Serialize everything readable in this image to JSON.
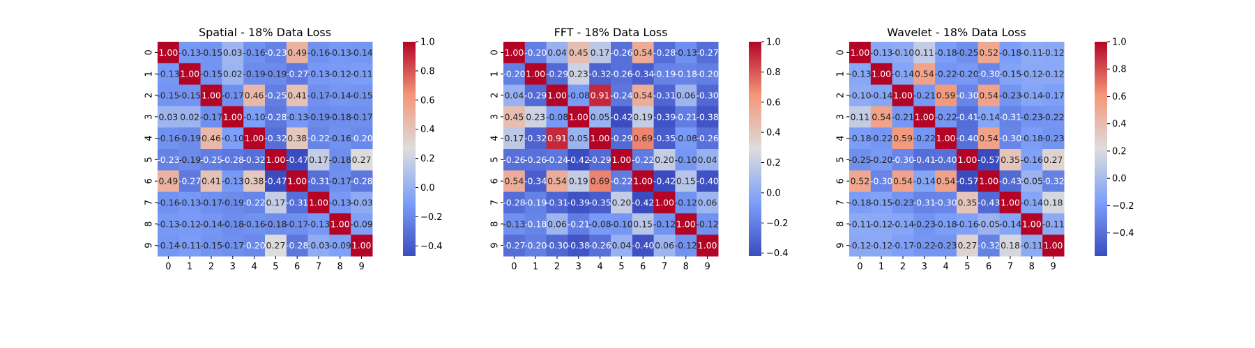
{
  "figure": {
    "background": "#ffffff",
    "colormap": "coolwarm"
  },
  "chart_data": [
    {
      "type": "heatmap",
      "title": "Spatial - 18% Data Loss",
      "x_categories": [
        "0",
        "1",
        "2",
        "3",
        "4",
        "5",
        "6",
        "7",
        "8",
        "9"
      ],
      "y_categories": [
        "0",
        "1",
        "2",
        "3",
        "4",
        "5",
        "6",
        "7",
        "8",
        "9"
      ],
      "vmin": -0.47,
      "vmax": 1.0,
      "colorbar_ticks": [
        -0.4,
        -0.2,
        0.0,
        0.2,
        0.4,
        0.6,
        0.8,
        1.0
      ],
      "colorbar_tick_labels": [
        "−0.4",
        "−0.2",
        "0.0",
        "0.2",
        "0.4",
        "0.6",
        "0.8",
        "1.0"
      ],
      "values": [
        [
          1.0,
          -0.13,
          -0.15,
          0.03,
          -0.16,
          -0.23,
          0.49,
          -0.16,
          -0.13,
          -0.14
        ],
        [
          -0.13,
          1.0,
          -0.15,
          0.02,
          -0.19,
          -0.19,
          -0.27,
          -0.13,
          -0.12,
          -0.11
        ],
        [
          -0.15,
          -0.15,
          1.0,
          -0.17,
          0.46,
          -0.25,
          0.41,
          -0.17,
          -0.14,
          -0.15
        ],
        [
          0.03,
          0.02,
          -0.17,
          1.0,
          -0.1,
          -0.28,
          -0.13,
          -0.19,
          -0.18,
          -0.17
        ],
        [
          -0.16,
          -0.19,
          0.46,
          -0.1,
          1.0,
          -0.32,
          0.38,
          -0.22,
          -0.16,
          -0.2
        ],
        [
          -0.23,
          -0.19,
          -0.25,
          -0.28,
          -0.32,
          1.0,
          -0.47,
          0.17,
          -0.18,
          0.27
        ],
        [
          0.49,
          -0.27,
          0.41,
          -0.13,
          0.38,
          -0.47,
          1.0,
          -0.31,
          -0.17,
          -0.28
        ],
        [
          -0.16,
          -0.13,
          -0.17,
          -0.19,
          -0.22,
          0.17,
          -0.31,
          1.0,
          -0.13,
          -0.03
        ],
        [
          -0.13,
          -0.12,
          -0.14,
          -0.18,
          -0.16,
          -0.18,
          -0.17,
          -0.13,
          1.0,
          -0.09
        ],
        [
          -0.14,
          -0.11,
          -0.15,
          -0.17,
          -0.2,
          0.27,
          -0.28,
          -0.03,
          -0.09,
          1.0
        ]
      ]
    },
    {
      "type": "heatmap",
      "title": "FFT - 18% Data Loss",
      "x_categories": [
        "0",
        "1",
        "2",
        "3",
        "4",
        "5",
        "6",
        "7",
        "8",
        "9"
      ],
      "y_categories": [
        "0",
        "1",
        "2",
        "3",
        "4",
        "5",
        "6",
        "7",
        "8",
        "9"
      ],
      "vmin": -0.42,
      "vmax": 1.0,
      "colorbar_ticks": [
        -0.4,
        -0.2,
        0.0,
        0.2,
        0.4,
        0.6,
        0.8,
        1.0
      ],
      "colorbar_tick_labels": [
        "−0.4",
        "−0.2",
        "0.0",
        "0.2",
        "0.4",
        "0.6",
        "0.8",
        "1.0"
      ],
      "values": [
        [
          1.0,
          -0.2,
          0.04,
          0.45,
          0.17,
          -0.26,
          0.54,
          -0.28,
          -0.13,
          -0.27
        ],
        [
          -0.2,
          1.0,
          -0.29,
          0.23,
          -0.32,
          -0.26,
          -0.34,
          -0.19,
          -0.18,
          -0.2
        ],
        [
          0.04,
          -0.29,
          1.0,
          -0.08,
          0.91,
          -0.24,
          0.54,
          -0.31,
          0.06,
          -0.3
        ],
        [
          0.45,
          0.23,
          -0.08,
          1.0,
          0.05,
          -0.42,
          0.19,
          -0.39,
          -0.21,
          -0.38
        ],
        [
          0.17,
          -0.32,
          0.91,
          0.05,
          1.0,
          -0.29,
          0.69,
          -0.35,
          -0.08,
          -0.26
        ],
        [
          -0.26,
          -0.26,
          -0.24,
          -0.42,
          -0.29,
          1.0,
          -0.22,
          0.2,
          -0.1,
          0.04
        ],
        [
          0.54,
          -0.34,
          0.54,
          0.19,
          0.69,
          -0.22,
          1.0,
          -0.42,
          0.15,
          -0.4
        ],
        [
          -0.28,
          -0.19,
          -0.31,
          -0.39,
          -0.35,
          0.2,
          -0.42,
          1.0,
          -0.12,
          0.06
        ],
        [
          -0.13,
          -0.18,
          0.06,
          -0.21,
          -0.08,
          -0.1,
          0.15,
          -0.12,
          1.0,
          -0.12
        ],
        [
          -0.27,
          -0.2,
          -0.3,
          -0.38,
          -0.26,
          0.04,
          -0.4,
          0.06,
          -0.12,
          1.0
        ]
      ]
    },
    {
      "type": "heatmap",
      "title": "Wavelet - 18% Data Loss",
      "x_categories": [
        "0",
        "1",
        "2",
        "3",
        "4",
        "5",
        "6",
        "7",
        "8",
        "9"
      ],
      "y_categories": [
        "0",
        "1",
        "2",
        "3",
        "4",
        "5",
        "6",
        "7",
        "8",
        "9"
      ],
      "vmin": -0.57,
      "vmax": 1.0,
      "colorbar_ticks": [
        -0.4,
        -0.2,
        0.0,
        0.2,
        0.4,
        0.6,
        0.8,
        1.0
      ],
      "colorbar_tick_labels": [
        "−0.4",
        "−0.2",
        "0.0",
        "0.2",
        "0.4",
        "0.6",
        "0.8",
        "1.0"
      ],
      "values": [
        [
          1.0,
          -0.13,
          -0.1,
          0.11,
          -0.18,
          -0.25,
          0.52,
          -0.18,
          -0.11,
          -0.12
        ],
        [
          -0.13,
          1.0,
          -0.14,
          0.54,
          -0.22,
          -0.2,
          -0.3,
          -0.15,
          -0.12,
          -0.12
        ],
        [
          -0.1,
          -0.14,
          1.0,
          -0.21,
          0.59,
          -0.3,
          0.54,
          -0.23,
          -0.14,
          -0.17
        ],
        [
          0.11,
          0.54,
          -0.21,
          1.0,
          -0.22,
          -0.41,
          -0.14,
          -0.31,
          -0.23,
          -0.22
        ],
        [
          -0.18,
          -0.22,
          0.59,
          -0.22,
          1.0,
          -0.4,
          0.54,
          -0.3,
          -0.18,
          -0.23
        ],
        [
          -0.25,
          -0.2,
          -0.3,
          -0.41,
          -0.4,
          1.0,
          -0.57,
          0.35,
          -0.16,
          0.27
        ],
        [
          0.52,
          -0.3,
          0.54,
          -0.14,
          0.54,
          -0.57,
          1.0,
          -0.43,
          -0.05,
          -0.32
        ],
        [
          -0.18,
          -0.15,
          -0.23,
          -0.31,
          -0.3,
          0.35,
          -0.43,
          1.0,
          -0.14,
          0.18
        ],
        [
          -0.11,
          -0.12,
          -0.14,
          -0.23,
          -0.18,
          -0.16,
          -0.05,
          -0.14,
          1.0,
          -0.11
        ],
        [
          -0.12,
          -0.12,
          -0.17,
          -0.22,
          -0.23,
          0.27,
          -0.32,
          0.18,
          -0.11,
          1.0
        ]
      ]
    }
  ]
}
